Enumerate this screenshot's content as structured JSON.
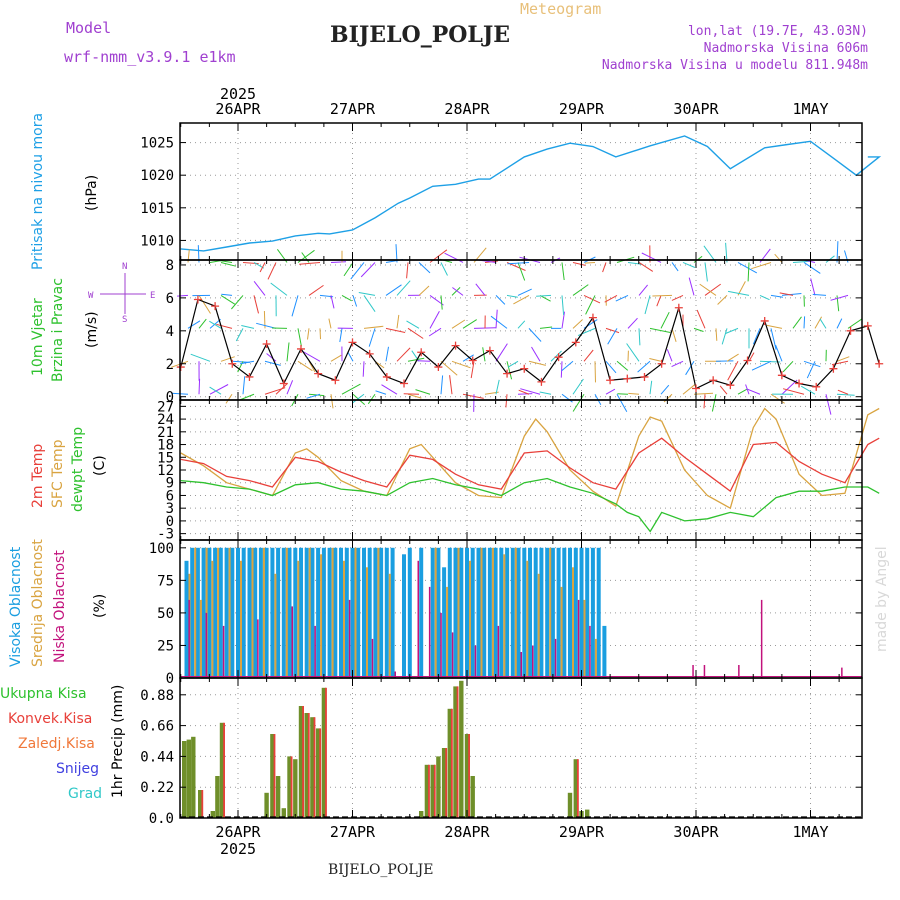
{
  "header": {
    "model_label": "Model",
    "model_name": "wrf-nmm_v3.9.1  e1km",
    "subtitle": "Meteogram",
    "station": "BIJELO_POLJE",
    "lonlat": "lon,lat (19.7E, 43.03N)",
    "altitude": "Nadmorska Visina 606m",
    "model_altitude": "Nadmorska Visina u modelu 811.948m",
    "footer_station": "BIJELO_POLJE",
    "credit": "made by Angel"
  },
  "colors": {
    "pressure": "#1ea0e6",
    "temp2m": "#e8403a",
    "sfc_temp": "#d9a441",
    "dewpt": "#2ec12e",
    "cloud_high": "#1a9ee0",
    "cloud_mid": "#d9a441",
    "cloud_low": "#c2127c",
    "precip_total": "#6f8f2a",
    "precip_conv": "#e8403a",
    "purple_text": "#a040d0"
  },
  "time_axis": {
    "year": "2025",
    "day_labels": [
      "26APR",
      "27APR",
      "28APR",
      "29APR",
      "30APR",
      "1MAY"
    ]
  },
  "panels": {
    "pressure": {
      "ylabel": "Pritisak na nivou mora",
      "unit": "(hPa)"
    },
    "wind": {
      "ylabel_1": "10m Vjetar",
      "ylabel_2": "Brzina i Pravac",
      "unit": "(m/s)",
      "compass_w": "W",
      "compass_e": "E",
      "compass_n": "N",
      "compass_s": "S"
    },
    "temperature": {
      "legend": [
        "2m Temp",
        "SFC Temp",
        "dewpt Temp"
      ],
      "unit": "(C)"
    },
    "clouds": {
      "legend": [
        "Visoka Oblacnost",
        "Srednja Oblacnost",
        "Niska Oblacnost"
      ],
      "unit": "(%)"
    },
    "precip": {
      "legend": [
        "Ukupna Kisa",
        "Konvek.Kisa",
        "Zaledj.Kisa",
        "Snijeg",
        "Grad"
      ],
      "ylabel": "1hr Precip (mm)"
    }
  },
  "chart_data": [
    {
      "type": "line",
      "title": "",
      "ylabel": "Pritisak na nivou mora (hPa)",
      "ylim": [
        1007,
        1028
      ],
      "yticks": [
        1010,
        1015,
        1020,
        1025
      ],
      "x_unit": "days from 25APR 00UTC",
      "series": [
        {
          "name": "Pritisak na nivou mora",
          "x": [
            0.5,
            0.7,
            0.9,
            1.1,
            1.3,
            1.5,
            1.7,
            1.8,
            2.0,
            2.2,
            2.4,
            2.5,
            2.7,
            2.9,
            3.1,
            3.2,
            3.5,
            3.7,
            3.9,
            4.1,
            4.3,
            4.6,
            4.9,
            5.1,
            5.3,
            5.6,
            5.8,
            6.0,
            6.2,
            6.4,
            6.6,
            6.5
          ],
          "y": [
            1008.7,
            1008.4,
            1009.0,
            1009.6,
            1009.9,
            1010.7,
            1011.1,
            1011.0,
            1011.6,
            1013.5,
            1015.7,
            1016.5,
            1018.3,
            1018.6,
            1019.4,
            1019.4,
            1022.8,
            1024.0,
            1024.9,
            1024.4,
            1022.8,
            1024.5,
            1026.0,
            1024.4,
            1021.0,
            1024.2,
            1024.7,
            1025.2,
            1022.6,
            1020.0,
            1022.8,
            1022.8
          ]
        }
      ]
    },
    {
      "type": "line",
      "title": "",
      "ylabel": "10m Vjetar Brzina i Pravac (m/s)",
      "ylim": [
        -0.2,
        8.3
      ],
      "yticks": [
        0,
        2,
        4,
        6,
        8
      ],
      "series": [
        {
          "name": "10m Vjetar",
          "x": [
            0.5,
            0.65,
            0.8,
            0.95,
            1.1,
            1.25,
            1.4,
            1.55,
            1.7,
            1.85,
            2.0,
            2.15,
            2.3,
            2.45,
            2.6,
            2.75,
            2.9,
            3.05,
            3.2,
            3.35,
            3.5,
            3.65,
            3.8,
            3.95,
            4.1,
            4.25,
            4.4,
            4.55,
            4.7,
            4.85,
            5.0,
            5.15,
            5.3,
            5.45,
            5.6,
            5.75,
            5.9,
            6.05,
            6.2,
            6.35,
            6.5,
            6.6
          ],
          "y": [
            1.8,
            5.9,
            5.5,
            2.0,
            1.2,
            3.2,
            0.8,
            2.9,
            1.4,
            1.0,
            3.3,
            2.6,
            1.2,
            0.8,
            2.7,
            1.8,
            3.1,
            2.2,
            2.8,
            1.4,
            1.7,
            0.9,
            2.4,
            3.3,
            4.8,
            1.0,
            1.1,
            1.2,
            2.0,
            5.4,
            0.5,
            1.0,
            0.7,
            2.2,
            4.6,
            1.3,
            0.8,
            0.6,
            1.7,
            4.0,
            4.3,
            2.0
          ]
        }
      ]
    },
    {
      "type": "line",
      "title": "",
      "ylabel": "(C)",
      "ylim": [
        -4.5,
        28.5
      ],
      "yticks": [
        -3,
        0,
        3,
        6,
        9,
        12,
        15,
        18,
        21,
        24,
        27
      ],
      "x_unit": "days from 25APR 00UTC",
      "series": [
        {
          "name": "2m Temp",
          "x": [
            0.5,
            0.7,
            0.9,
            1.1,
            1.3,
            1.5,
            1.7,
            1.9,
            2.1,
            2.3,
            2.5,
            2.7,
            2.9,
            3.1,
            3.3,
            3.5,
            3.7,
            3.9,
            4.1,
            4.3,
            4.5,
            4.7,
            4.9,
            5.1,
            5.3,
            5.5,
            5.7,
            5.9,
            6.1,
            6.3,
            6.5,
            6.6
          ],
          "y": [
            14.5,
            13.5,
            10.5,
            9.5,
            8.0,
            15.0,
            14.0,
            11.5,
            9.5,
            8.0,
            15.5,
            14.5,
            11.0,
            8.5,
            7.5,
            16.0,
            16.5,
            12.5,
            9.0,
            7.5,
            16.0,
            19.5,
            15.0,
            11.0,
            7.0,
            18.0,
            18.5,
            14.0,
            11.0,
            9.0,
            18.0,
            19.5
          ]
        },
        {
          "name": "SFC Temp",
          "x": [
            0.5,
            0.7,
            0.9,
            1.1,
            1.3,
            1.5,
            1.6,
            1.7,
            1.9,
            2.1,
            2.3,
            2.5,
            2.6,
            2.7,
            2.9,
            3.1,
            3.3,
            3.5,
            3.6,
            3.7,
            3.9,
            4.1,
            4.3,
            4.5,
            4.6,
            4.7,
            4.9,
            5.1,
            5.3,
            5.5,
            5.6,
            5.7,
            5.9,
            6.1,
            6.3,
            6.5,
            6.6
          ],
          "y": [
            16.0,
            13.0,
            9.0,
            7.5,
            6.0,
            16.0,
            17.0,
            15.0,
            9.5,
            7.0,
            6.0,
            17.0,
            18.0,
            15.0,
            9.0,
            6.0,
            5.5,
            20.0,
            24.0,
            21.0,
            12.0,
            7.0,
            3.5,
            20.0,
            24.5,
            23.5,
            12.0,
            6.0,
            3.0,
            22.0,
            26.5,
            24.0,
            11.0,
            6.0,
            6.5,
            25.0,
            26.5
          ]
        },
        {
          "name": "dewpt Temp",
          "x": [
            0.5,
            0.7,
            0.9,
            1.1,
            1.3,
            1.5,
            1.7,
            1.9,
            2.1,
            2.3,
            2.5,
            2.7,
            2.9,
            3.1,
            3.3,
            3.5,
            3.7,
            3.9,
            4.1,
            4.3,
            4.4,
            4.5,
            4.6,
            4.7,
            4.9,
            5.1,
            5.3,
            5.5,
            5.7,
            5.9,
            6.1,
            6.3,
            6.5,
            6.6
          ],
          "y": [
            9.5,
            9.0,
            8.0,
            7.5,
            6.0,
            8.5,
            9.0,
            7.5,
            7.0,
            6.0,
            9.0,
            10.0,
            8.5,
            7.5,
            6.0,
            9.0,
            10.0,
            8.0,
            6.5,
            4.0,
            2.0,
            1.0,
            -2.5,
            2.0,
            0.0,
            0.5,
            2.0,
            1.0,
            5.5,
            7.0,
            7.0,
            8.0,
            8.0,
            6.5
          ]
        }
      ]
    },
    {
      "type": "bar",
      "title": "",
      "ylabel": "(%)",
      "ylim": [
        0,
        106
      ],
      "yticks": [
        0,
        25,
        50,
        75,
        100
      ],
      "x_unit": "days from 25APR 00UTC",
      "series": [
        {
          "name": "Visoka Oblacnost",
          "x": [
            0.55,
            0.6,
            0.65,
            0.7,
            0.75,
            0.8,
            0.85,
            0.9,
            0.95,
            1.0,
            1.05,
            1.1,
            1.15,
            1.2,
            1.25,
            1.3,
            1.35,
            1.4,
            1.45,
            1.5,
            1.55,
            1.6,
            1.65,
            1.7,
            1.75,
            1.8,
            1.85,
            1.9,
            1.95,
            2.0,
            2.05,
            2.1,
            2.15,
            2.2,
            2.25,
            2.3,
            2.35,
            2.45,
            2.5,
            2.55,
            2.6,
            2.7,
            2.75,
            2.8,
            2.85,
            2.9,
            2.95,
            3.0,
            3.05,
            3.1,
            3.15,
            3.2,
            3.25,
            3.3,
            3.35,
            3.4,
            3.45,
            3.5,
            3.55,
            3.6,
            3.65,
            3.7,
            3.75,
            3.8,
            3.85,
            3.9,
            3.95,
            4.0,
            4.05,
            4.1,
            4.15,
            4.2
          ],
          "y": [
            90,
            100,
            100,
            100,
            100,
            100,
            100,
            100,
            100,
            100,
            100,
            100,
            100,
            100,
            100,
            100,
            100,
            100,
            100,
            100,
            100,
            100,
            100,
            100,
            100,
            100,
            100,
            100,
            100,
            100,
            100,
            100,
            100,
            100,
            100,
            100,
            100,
            95,
            100,
            0,
            100,
            100,
            100,
            85,
            100,
            100,
            100,
            100,
            100,
            100,
            100,
            100,
            100,
            100,
            100,
            100,
            100,
            100,
            100,
            100,
            100,
            100,
            100,
            100,
            100,
            100,
            100,
            100,
            100,
            100,
            100,
            40
          ]
        },
        {
          "name": "Srednja Oblacnost",
          "x": [
            0.55,
            0.6,
            0.65,
            0.7,
            0.75,
            0.8,
            0.9,
            1.0,
            1.1,
            1.2,
            1.3,
            1.4,
            1.5,
            1.6,
            1.7,
            1.8,
            1.9,
            2.0,
            2.1,
            2.2,
            2.3,
            2.7,
            2.8,
            2.9,
            3.0,
            3.1,
            3.2,
            3.3,
            3.4,
            3.5,
            3.6,
            3.7,
            3.8,
            3.9,
            4.0,
            4.1
          ],
          "y": [
            80,
            100,
            60,
            100,
            90,
            100,
            100,
            90,
            100,
            100,
            80,
            100,
            90,
            100,
            95,
            100,
            90,
            100,
            85,
            100,
            80,
            100,
            70,
            100,
            90,
            100,
            100,
            95,
            100,
            90,
            80,
            100,
            70,
            85,
            60,
            30
          ]
        },
        {
          "name": "Niska Oblacnost",
          "x": [
            0.6,
            0.75,
            0.9,
            1.2,
            1.5,
            1.7,
            2.0,
            2.2,
            2.4,
            2.6,
            2.7,
            2.8,
            2.9,
            3.1,
            3.3,
            3.5,
            3.6,
            3.8,
            4.0,
            4.1,
            4.2,
            4.3,
            4.5,
            4.6,
            5.0,
            5.1,
            5.3,
            5.4,
            5.6,
            6.0,
            6.3
          ],
          "y": [
            60,
            50,
            40,
            45,
            55,
            40,
            60,
            30,
            5,
            90,
            70,
            50,
            35,
            25,
            40,
            20,
            25,
            30,
            60,
            40,
            0,
            0,
            0,
            0,
            10,
            10,
            0,
            10,
            60,
            0,
            8
          ]
        }
      ]
    },
    {
      "type": "bar",
      "title": "",
      "ylabel": "1hr Precip (mm)",
      "ylim": [
        0,
        1.0
      ],
      "yticks": [
        0.0,
        0.22,
        0.44,
        0.66,
        0.88
      ],
      "x_unit": "days from 25APR 00UTC",
      "series": [
        {
          "name": "Ukupna Kisa",
          "x": [
            0.53,
            0.57,
            0.61,
            0.67,
            0.72,
            0.78,
            0.82,
            0.86,
            0.92,
            1.0,
            1.05,
            1.25,
            1.3,
            1.35,
            1.4,
            1.45,
            1.5,
            1.55,
            1.6,
            1.65,
            1.7,
            1.75,
            1.8,
            2.6,
            2.65,
            2.7,
            2.75,
            2.8,
            2.85,
            2.9,
            2.95,
            3.0,
            3.05,
            3.1,
            3.15,
            3.2,
            3.9,
            3.95,
            4.0,
            4.05
          ],
          "y": [
            0.55,
            0.56,
            0.58,
            0.2,
            0.0,
            0.05,
            0.3,
            0.68,
            0.0,
            0.0,
            0.0,
            0.18,
            0.6,
            0.3,
            0.07,
            0.44,
            0.42,
            0.8,
            0.75,
            0.72,
            0.64,
            0.93,
            0.0,
            0.05,
            0.38,
            0.38,
            0.44,
            0.5,
            0.78,
            0.94,
            0.98,
            0.6,
            0.3,
            0.0,
            0.0,
            0.0,
            0.18,
            0.42,
            0.05,
            0.06
          ]
        },
        {
          "name": "Konvek.Kisa",
          "x": [
            0.67,
            0.86,
            1.3,
            1.45,
            1.55,
            1.6,
            1.65,
            1.7,
            1.75,
            2.65,
            2.7,
            2.8,
            2.85,
            2.9,
            3.0,
            3.95
          ],
          "y": [
            0.2,
            0.68,
            0.6,
            0.44,
            0.8,
            0.75,
            0.72,
            0.64,
            0.93,
            0.38,
            0.38,
            0.5,
            0.78,
            0.94,
            0.6,
            0.42
          ]
        }
      ]
    }
  ]
}
